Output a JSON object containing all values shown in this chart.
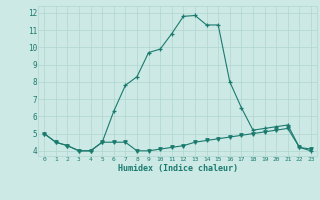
{
  "xlabel": "Humidex (Indice chaleur)",
  "line1_x": [
    0,
    1,
    2,
    3,
    4,
    5,
    6,
    7,
    8,
    9,
    10,
    11,
    12,
    13,
    14,
    15,
    16,
    17,
    18,
    19,
    20,
    21,
    22,
    23
  ],
  "line1_y": [
    5.0,
    4.5,
    4.3,
    4.0,
    4.0,
    4.5,
    6.3,
    7.8,
    8.3,
    9.7,
    9.9,
    10.8,
    11.8,
    11.85,
    11.3,
    11.3,
    8.0,
    6.5,
    5.2,
    5.3,
    5.4,
    5.5,
    4.2,
    4.0
  ],
  "line2_x": [
    0,
    1,
    2,
    3,
    4,
    5,
    6,
    7,
    8,
    9,
    10,
    11,
    12,
    13,
    14,
    15,
    16,
    17,
    18,
    19,
    20,
    21,
    22,
    23
  ],
  "line2_y": [
    5.0,
    4.5,
    4.3,
    4.0,
    4.0,
    4.5,
    4.5,
    4.5,
    4.0,
    4.0,
    4.1,
    4.2,
    4.3,
    4.5,
    4.6,
    4.7,
    4.8,
    4.9,
    5.0,
    5.1,
    5.2,
    5.3,
    4.2,
    4.1
  ],
  "line_color": "#1a7a6e",
  "bg_color": "#cce9e5",
  "grid_color": "#b0d5d0",
  "ylim": [
    3.7,
    12.4
  ],
  "xlim": [
    -0.5,
    23.5
  ],
  "yticks": [
    4,
    5,
    6,
    7,
    8,
    9,
    10,
    11,
    12
  ],
  "xticks": [
    0,
    1,
    2,
    3,
    4,
    5,
    6,
    7,
    8,
    9,
    10,
    11,
    12,
    13,
    14,
    15,
    16,
    17,
    18,
    19,
    20,
    21,
    22,
    23
  ]
}
